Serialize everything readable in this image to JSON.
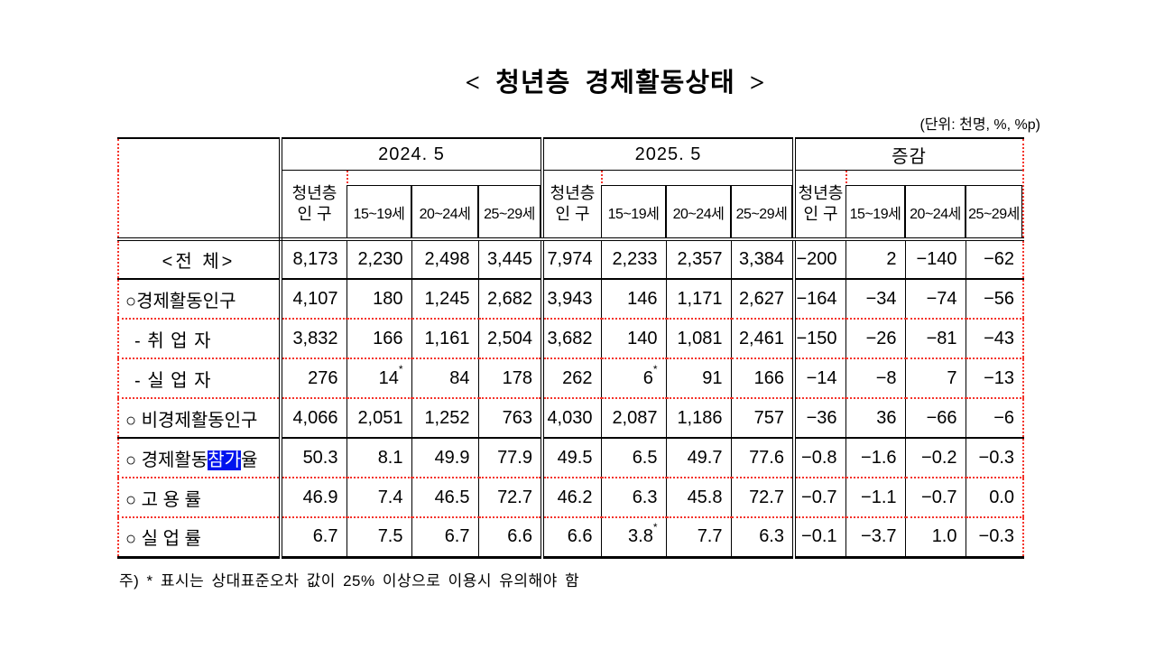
{
  "title": "< 청년층 경제활동상태 >",
  "unit_note": "(단위: 천명, %, %p)",
  "footnote": "주) * 표시는 상대표준오차 값이 25% 이상으로 이용시 유의해야 함",
  "colors": {
    "dotted_border": "#f5342b",
    "selection_highlight": "#0013ee",
    "selection_text": "#ffffff"
  },
  "table": {
    "corner_label": "",
    "groups": [
      {
        "title": "2024. 5",
        "subcolumns": [
          [
            "청년층",
            "인 구"
          ],
          "15~19세",
          "20~24세",
          "25~29세"
        ]
      },
      {
        "title": "2025. 5",
        "subcolumns": [
          [
            "청년층",
            "인 구"
          ],
          "15~19세",
          "20~24세",
          "25~29세"
        ]
      },
      {
        "title": "증감",
        "subcolumns": [
          [
            "청년층",
            "인 구"
          ],
          "15~19세",
          "20~24세",
          "25~29세"
        ]
      }
    ],
    "rows": [
      {
        "label": "<전 체>",
        "center": true,
        "sep": "solid",
        "values": [
          "8,173",
          "2,230",
          "2,498",
          "3,445",
          "7,974",
          "2,233",
          "2,357",
          "3,384",
          "−200",
          "2",
          "−140",
          "−62"
        ]
      },
      {
        "label": "○경제활동인구",
        "sep": "dotted",
        "values": [
          "4,107",
          "180",
          "1,245",
          "2,682",
          "3,943",
          "146",
          "1,171",
          "2,627",
          "−164",
          "−34",
          "−74",
          "−56"
        ]
      },
      {
        "label": "- 취 업 자",
        "indent": true,
        "sep": "dotted",
        "values": [
          "3,832",
          "166",
          "1,161",
          "2,504",
          "3,682",
          "140",
          "1,081",
          "2,461",
          "−150",
          "−26",
          "−81",
          "−43"
        ]
      },
      {
        "label": "- 실 업 자",
        "indent": true,
        "sep": "dotted",
        "values": [
          "276",
          "14*",
          "84",
          "178",
          "262",
          "6*",
          "91",
          "166",
          "−14",
          "−8",
          "7",
          "−13"
        ]
      },
      {
        "label": "○ 비경제활동인구",
        "sep": "solid",
        "values": [
          "4,066",
          "2,051",
          "1,252",
          "763",
          "4,030",
          "2,087",
          "1,186",
          "757",
          "−36",
          "36",
          "−66",
          "−6"
        ]
      },
      {
        "label": "○ 경제활동참가율",
        "sep": "dotted",
        "parts": [
          {
            "text": "○ 경제활동"
          },
          {
            "text": "참가",
            "highlighted": true
          },
          {
            "text": "율"
          }
        ],
        "values": [
          "50.3",
          "8.1",
          "49.9",
          "77.9",
          "49.5",
          "6.5",
          "49.7",
          "77.6",
          "−0.8",
          "−1.6",
          "−0.2",
          "−0.3"
        ]
      },
      {
        "label": "○ 고 용 률",
        "sep": "dotted",
        "values": [
          "46.9",
          "7.4",
          "46.5",
          "72.7",
          "46.2",
          "6.3",
          "45.8",
          "72.7",
          "−0.7",
          "−1.1",
          "−0.7",
          "0.0"
        ]
      },
      {
        "label": "○ 실 업 률",
        "sep": "none",
        "values": [
          "6.7",
          "7.5",
          "6.7",
          "6.6",
          "6.6",
          "3.8*",
          "7.7",
          "6.3",
          "−0.1",
          "−3.7",
          "1.0",
          "−0.3"
        ]
      }
    ]
  }
}
